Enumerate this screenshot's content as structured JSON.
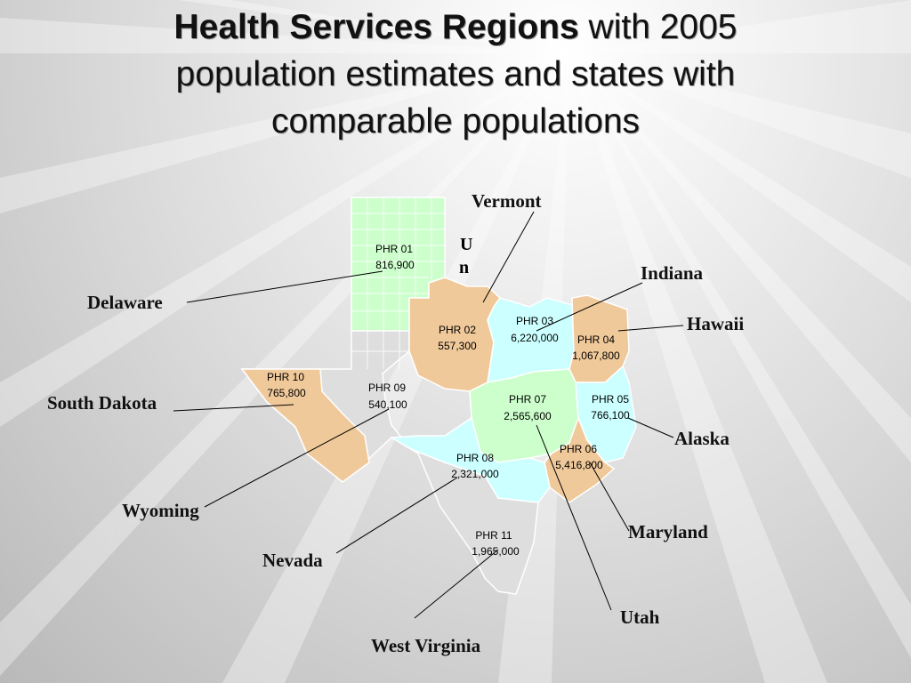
{
  "title": {
    "bold": "Health Services Regions",
    "line1_rest": " with 2005",
    "line2": "population estimates and states with",
    "line3": "comparable populations"
  },
  "regions": [
    {
      "name": "PHR 01",
      "population": "816,900",
      "color": "#ccffcc"
    },
    {
      "name": "PHR 02",
      "population": "557,300",
      "color": "#f0c99a"
    },
    {
      "name": "PHR 03",
      "population": "6,220,000",
      "color": "#ccffff"
    },
    {
      "name": "PHR 04",
      "population": "1,067,800",
      "color": "#f0c99a"
    },
    {
      "name": "PHR 05",
      "population": "766,100",
      "color": "#ccffff"
    },
    {
      "name": "PHR 06",
      "population": "5,416,800",
      "color": "#f0c99a"
    },
    {
      "name": "PHR 07",
      "population": "2,565,600",
      "color": "#ccffcc"
    },
    {
      "name": "PHR 08",
      "population": "2,321,000",
      "color": "#ccffff"
    },
    {
      "name": "PHR 09",
      "population": "540,100",
      "color": "#dedede"
    },
    {
      "name": "PHR 10",
      "population": "765,800",
      "color": "#f0c99a"
    },
    {
      "name": "PHR 11",
      "population": "1,965,000",
      "color": "#dedede"
    }
  ],
  "states": {
    "vermont": "Vermont",
    "delaware": "Delaware",
    "indiana": "Indiana",
    "hawaii": "Hawaii",
    "south_dakota": "South Dakota",
    "alaska": "Alaska",
    "wyoming": "Wyoming",
    "maryland": "Maryland",
    "nevada": "Nevada",
    "utah": "Utah",
    "west_virginia": "West Virginia"
  },
  "stray_text": {
    "top": "U",
    "bottom": "n"
  }
}
